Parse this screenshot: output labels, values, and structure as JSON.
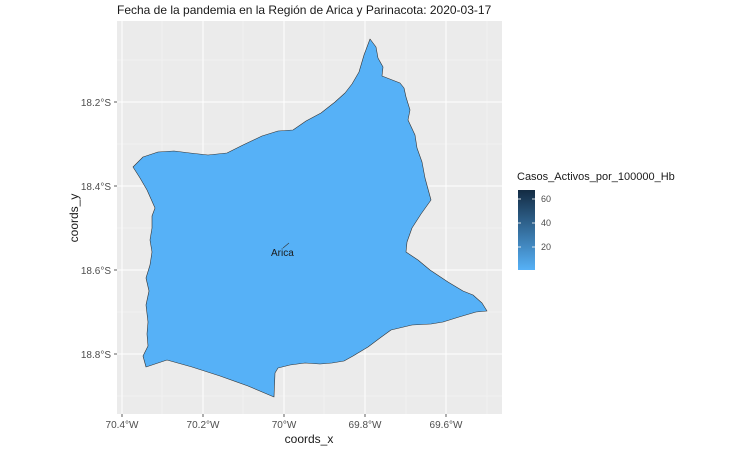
{
  "title": "Fecha de la pandemia en la Región de Arica y Parinacota: 2020-03-17",
  "x_axis": {
    "title": "coords_x",
    "ticks": [
      "70.4°W",
      "70.2°W",
      "70°W",
      "69.8°W",
      "69.6°W"
    ]
  },
  "y_axis": {
    "title": "coords_y",
    "ticks": [
      "18.2°S",
      "18.4°S",
      "18.6°S",
      "18.8°S"
    ]
  },
  "legend": {
    "title": "Casos_Activos_por_100000_Hb",
    "ticks": [
      "60",
      "40",
      "20"
    ],
    "low_color": "#56B1F7",
    "high_color": "#132B43"
  },
  "region": {
    "fill_color": "#56B1F7",
    "border_color": "#333333",
    "value": 0
  },
  "place": {
    "name": "Arica"
  },
  "panel_background": "#EBEBEB",
  "grid_color": "#FFFFFF"
}
